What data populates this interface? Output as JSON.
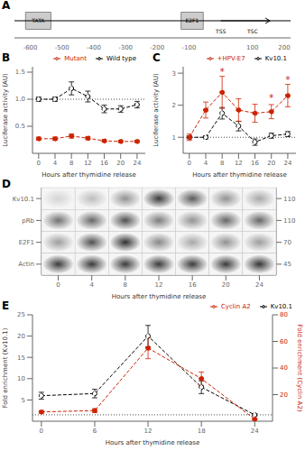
{
  "chart_data": [
    {
      "panel": "A",
      "type": "diagram",
      "xlim": [
        -650,
        220
      ],
      "xticks": [
        -600,
        -500,
        -400,
        -300,
        -200,
        -100,
        100,
        200
      ],
      "tick_labels": "x",
      "boxes": [
        {
          "label": "TATA",
          "x": -575,
          "width": 80
        },
        {
          "label": "E2F1",
          "x": -90,
          "width": 70
        }
      ],
      "arrow": [
        0,
        155
      ],
      "annotations": [
        {
          "text": "TSS",
          "x": 0
        },
        {
          "text": "TSC",
          "x": 100
        }
      ]
    },
    {
      "panel": "B",
      "type": "line",
      "x": [
        0,
        4,
        8,
        12,
        16,
        20,
        24
      ],
      "xlabel": "Hours after thymidine release",
      "ylabel": "Luciferase activity (AU)",
      "xlim": [
        -1.5,
        26
      ],
      "xticks": [
        0,
        4,
        8,
        12,
        16,
        20,
        24
      ],
      "ylim": [
        0,
        1.6
      ],
      "yticks": [
        0.5,
        {
          "value": 1.0,
          "label": "1.0"
        },
        1.5
      ],
      "legend": "upper right",
      "hlines": [
        1.0
      ],
      "series": [
        {
          "name": "Wild type",
          "color": "black",
          "marker": "open_circle",
          "line_style": "dashed",
          "values": [
            1.0,
            1.0,
            1.2,
            1.05,
            0.82,
            0.82,
            0.9
          ],
          "errors": [
            0.04,
            0.04,
            0.12,
            0.1,
            0.07,
            0.06,
            0.06
          ]
        },
        {
          "name": "Mutant",
          "color": "#cc2200",
          "marker": "circle",
          "line_style": "dashed",
          "values": [
            0.27,
            0.27,
            0.32,
            0.28,
            0.23,
            0.22,
            0.22
          ],
          "errors": [
            0.03,
            0.03,
            0.04,
            0.03,
            0.02,
            0.02,
            0.02
          ]
        }
      ]
    },
    {
      "panel": "C",
      "type": "line",
      "x": [
        0,
        4,
        8,
        12,
        16,
        20,
        24
      ],
      "xlabel": "Hours after thymidine release",
      "ylabel": "Luciferase activity (AU)",
      "xlim": [
        -1.5,
        26
      ],
      "xticks": [
        0,
        4,
        8,
        12,
        16,
        20,
        24
      ],
      "ylim": [
        0.5,
        3.2
      ],
      "yticks": [
        1,
        2,
        3
      ],
      "legend": "upper right",
      "hlines": [
        1.0
      ],
      "series": [
        {
          "name": "Kv10.1",
          "color": "black",
          "marker": "open_circle",
          "line_style": "dashed",
          "values": [
            1.0,
            1.0,
            1.75,
            1.35,
            0.85,
            1.05,
            1.1
          ],
          "errors": [
            0.05,
            0.05,
            0.18,
            0.15,
            0.1,
            0.08,
            0.08
          ]
        },
        {
          "name": "+HPV-E7",
          "color": "#cc2200",
          "marker": "circle",
          "line_style": "dashed",
          "values": [
            1.0,
            1.85,
            2.4,
            1.85,
            1.75,
            1.8,
            2.3
          ],
          "errors": [
            0.1,
            0.25,
            0.5,
            0.35,
            0.28,
            0.22,
            0.35
          ]
        }
      ],
      "annotations": [
        {
          "text": "*",
          "x": 8,
          "y": 2.95,
          "color": "#cc2200"
        },
        {
          "text": "*",
          "x": 20,
          "y": 2.12,
          "color": "#cc2200"
        },
        {
          "text": "*",
          "x": 24,
          "y": 2.7,
          "color": "#cc2200"
        }
      ]
    },
    {
      "panel": "D",
      "type": "blot",
      "categories": [
        "0",
        "4",
        "8",
        "12",
        "16",
        "20",
        "24"
      ],
      "xlabel": "Hours after thymidine release",
      "bands": [
        "Kv10.1",
        "pRb",
        "E2F1",
        "Actin"
      ],
      "band_markers": [
        110,
        110,
        70,
        45
      ],
      "values": [
        [
          0.15,
          0.25,
          0.45,
          0.85,
          0.7,
          0.45,
          0.35
        ],
        [
          0.6,
          0.65,
          0.75,
          0.55,
          0.45,
          0.65,
          0.65
        ],
        [
          0.4,
          0.75,
          0.9,
          0.5,
          0.35,
          0.45,
          0.4
        ],
        [
          0.85,
          0.85,
          0.85,
          0.85,
          0.85,
          0.85,
          0.88
        ]
      ]
    },
    {
      "panel": "E",
      "type": "line",
      "x": [
        0,
        6,
        12,
        18,
        24
      ],
      "xlabel": "Hours after thymidine release",
      "ylabel": "Fold enrichment (Kv10.1)",
      "y2label": "Fold enrichment (Cyclin A2)",
      "xlim": [
        -1,
        26
      ],
      "xticks": [
        0,
        6,
        12,
        18,
        24
      ],
      "ylim": [
        0,
        25
      ],
      "yticks": [
        5,
        10,
        15,
        20,
        25
      ],
      "y2lim": [
        0,
        80
      ],
      "y2ticks": [
        20,
        40,
        60,
        80
      ],
      "legend": "upper right",
      "hlines": [
        1.5
      ],
      "series": [
        {
          "name": "Kv10.1",
          "color": "black",
          "marker": "open_circle",
          "line_style": "dashed",
          "values": [
            6.0,
            6.5,
            20.0,
            8.0,
            1.5
          ],
          "errors": [
            0.8,
            1.0,
            2.5,
            1.5,
            0.3
          ]
        },
        {
          "name": "Cyclin A2",
          "color": "#cc2200",
          "marker": "circle",
          "line_style": "dashed",
          "axis": "y2",
          "values": [
            7.0,
            8.0,
            55.0,
            32.0,
            1.5
          ],
          "errors": [
            1.0,
            1.5,
            8.0,
            5.0,
            0.3
          ]
        }
      ]
    }
  ]
}
